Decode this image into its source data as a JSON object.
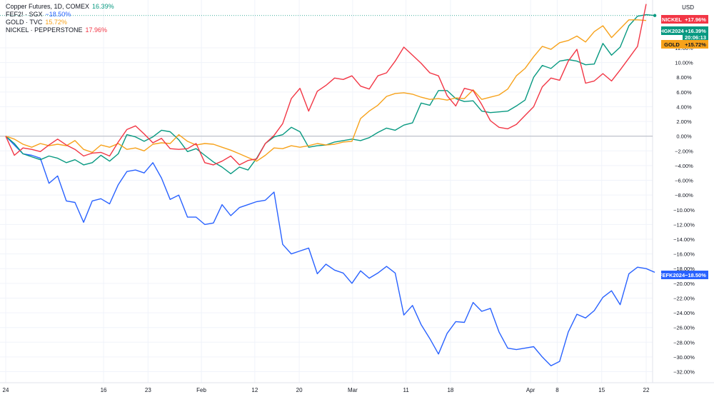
{
  "legend": [
    {
      "label": "Copper Futures, 1D, COMEX",
      "value": "16.39%",
      "color": "#089981"
    },
    {
      "label": "FEF2! · SGX",
      "value": "−18.50%",
      "color": "#2962ff"
    },
    {
      "label": "GOLD · TVC",
      "value": "15.72%",
      "color": "#f7a21b"
    },
    {
      "label": "NICKEL · PEPPERSTONE",
      "value": "17.96%",
      "color": "#f23645"
    }
  ],
  "currency": "USD",
  "countdown": "20:06:13",
  "chart_data": {
    "type": "line",
    "yunit": "%",
    "ylim": [
      -33.5,
      18.5
    ],
    "y_ticks": [
      12,
      10,
      8,
      6,
      4,
      2,
      0,
      -2,
      -4,
      -6,
      -8,
      -10,
      -12,
      -14,
      -16,
      -18,
      -20,
      -22,
      -24,
      -26,
      -28,
      -30,
      -32
    ],
    "y_tick_labels": [
      "12.00%",
      "10.00%",
      "8.00%",
      "6.00%",
      "4.00%",
      "2.00%",
      "0.00%",
      "−2.00%",
      "−4.00%",
      "−6.00%",
      "−8.00%",
      "−10.00%",
      "−12.00%",
      "−14.00%",
      "−16.00%",
      "−18.00%",
      "−20.00%",
      "−22.00%",
      "−24.00%",
      "−26.00%",
      "−28.00%",
      "−30.00%",
      "−32.00%"
    ],
    "x_range": [
      1,
      68
    ],
    "x_ticks": [
      {
        "x": 1,
        "label": "24"
      },
      {
        "x": 12,
        "label": "16"
      },
      {
        "x": 17,
        "label": "23"
      },
      {
        "x": 23,
        "label": "Feb"
      },
      {
        "x": 29,
        "label": "12"
      },
      {
        "x": 34,
        "label": "20"
      },
      {
        "x": 40,
        "label": "Mar"
      },
      {
        "x": 46,
        "label": "11"
      },
      {
        "x": 51,
        "label": "18"
      },
      {
        "x": 60,
        "label": "Apr"
      },
      {
        "x": 63,
        "label": "8"
      },
      {
        "x": 68,
        "label": "15"
      },
      {
        "x": 73,
        "label": "22"
      }
    ],
    "x_ticks_note": "",
    "series": [
      {
        "name": "FEF2! · SGX",
        "tag": "FEFK2024",
        "last": "−18.50%",
        "color": "#2962ff",
        "values": [
          0,
          -1.2,
          -2.4,
          -2.6,
          -3,
          -6.4,
          -5.4,
          -8.8,
          -9,
          -11.7,
          -8.8,
          -8.5,
          -9.2,
          -6.6,
          -4.8,
          -4.6,
          -5,
          -3.6,
          -5.7,
          -8.6,
          -8,
          -11,
          -11,
          -12,
          -11.8,
          -9.3,
          -10.8,
          -9.7,
          -9.3,
          -8.9,
          -8.7,
          -7.6,
          -14.7,
          -16,
          -15.6,
          -15.2,
          -18.7,
          -17.4,
          -18.2,
          -18.6,
          -20,
          -18.3,
          -19.3,
          -18.6,
          -17.7,
          -18.6,
          -24.3,
          -23,
          -25.6,
          -27.5,
          -29.6,
          -26.8,
          -25.2,
          -25.3,
          -22.6,
          -23.8,
          -23.4,
          -26.6,
          -28.8,
          -29,
          -28.8,
          -28.6,
          -30,
          -31.2,
          -30.6,
          -26.6,
          -24.2,
          -24.7,
          -23.7,
          -21.9,
          -21,
          -22.9,
          -18.7,
          -17.8,
          -18,
          -18.5
        ]
      },
      {
        "name": "Copper Futures, 1D, COMEX",
        "tag": "HGK2024",
        "last": "+16.39%",
        "color": "#089981",
        "values": [
          0,
          -1,
          -2.4,
          -2.8,
          -3.2,
          -2.7,
          -3,
          -3.6,
          -3.2,
          -3.9,
          -3.6,
          -2.6,
          -3.4,
          -2.4,
          0.2,
          -0.1,
          -0.7,
          -0.1,
          0.8,
          0.6,
          -0.5,
          -2.1,
          -1.7,
          -2.6,
          -3.5,
          -4.2,
          -5.1,
          -4.2,
          -4.6,
          -3,
          -1,
          -0.1,
          0.2,
          1.2,
          0.6,
          -1.5,
          -1.3,
          -1.2,
          -0.8,
          -0.6,
          -0.4,
          -0.6,
          -0.2,
          0.5,
          1.1,
          0.8,
          1.5,
          1.8,
          4.5,
          4.2,
          6.2,
          6.2,
          5.1,
          4.7,
          4.8,
          3.4,
          3.2,
          3.3,
          3.4,
          4.1,
          4.9,
          8,
          9.6,
          9.2,
          10.2,
          10.4,
          10.2,
          9.7,
          9.8,
          12.6,
          11,
          12.1,
          15,
          16.3,
          16.5,
          16.39
        ]
      },
      {
        "name": "GOLD · TVC",
        "tag": "GOLD",
        "last": "+15.72%",
        "color": "#f7a21b",
        "values": [
          0,
          -0.4,
          -1.1,
          -1.5,
          -1,
          -1.3,
          -1.1,
          -1.3,
          -0.6,
          -1.8,
          -2.2,
          -1.2,
          -1.5,
          -1,
          -1.8,
          -1.6,
          -2,
          -1.1,
          -0.9,
          -1,
          0.2,
          -0.7,
          -1.2,
          -1,
          -1.1,
          -1.5,
          -1.9,
          -2.4,
          -2.9,
          -3.4,
          -2.6,
          -1.6,
          -1.7,
          -1.3,
          -1.5,
          -1.3,
          -1,
          -1.2,
          -1.1,
          -0.8,
          -0.7,
          2.4,
          3.4,
          4.2,
          5.4,
          5.8,
          5.9,
          5.7,
          5.3,
          5,
          5.1,
          4.9,
          5.2,
          5.1,
          6.3,
          5,
          5.3,
          5.6,
          6.4,
          8.2,
          9.2,
          10.8,
          12.2,
          11.8,
          12.7,
          13,
          13.6,
          12.8,
          14.2,
          15,
          13.4,
          14.6,
          15.8,
          15.8,
          15.72
        ]
      },
      {
        "name": "NICKEL · PEPPERSTONE",
        "tag": "NICKEL",
        "last": "+17.96%",
        "color": "#f23645",
        "values": [
          0,
          -2.6,
          -1.6,
          -1.8,
          -2.1,
          -1.2,
          -0.4,
          -1.2,
          -1.8,
          -2.7,
          -2.3,
          -2.2,
          -2.7,
          -0.8,
          0.9,
          1.4,
          0.3,
          -0.9,
          -0.3,
          -1.7,
          -1.8,
          -1.7,
          -1,
          -3.6,
          -3.9,
          -3.4,
          -2.7,
          -3.9,
          -3.3,
          -3.1,
          -1,
          0.1,
          1.7,
          5.1,
          6.5,
          3.4,
          6.1,
          6.9,
          7.9,
          7.7,
          8.2,
          6.8,
          6.4,
          8.2,
          8.6,
          10.2,
          12.1,
          11,
          9.9,
          8.6,
          8.2,
          5.5,
          4.1,
          6.5,
          6.2,
          4.3,
          2.1,
          1.2,
          1,
          1.6,
          2.8,
          4,
          6.7,
          7.9,
          7.6,
          10.2,
          11.8,
          7.2,
          7.5,
          8.5,
          7.5,
          9,
          10.6,
          12.2,
          17.96
        ]
      }
    ]
  }
}
